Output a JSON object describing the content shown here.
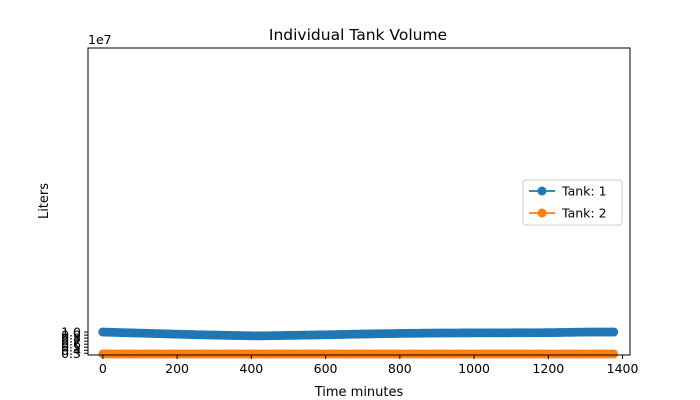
{
  "chart_data": {
    "type": "line",
    "title": "Individual Tank Volume",
    "xlabel": "Time minutes",
    "ylabel": "Liters",
    "y_offset_label": "1e7",
    "y_scale": 10000000,
    "xlim": [
      -40,
      1420
    ],
    "ylim": [
      0.2435,
      10.366
    ],
    "xticks": [
      0,
      200,
      400,
      600,
      800,
      1000,
      1200,
      1400
    ],
    "yticks": [
      0.3,
      0.4,
      0.5,
      0.6,
      0.7,
      0.8,
      0.9,
      1.0
    ],
    "grid": false,
    "legend_position": "center-right",
    "marker": "circle",
    "series": [
      {
        "name": "Tank: 1",
        "color": "#1f77b4",
        "points": [
          [
            0,
            1.0
          ],
          [
            100,
            0.965
          ],
          [
            200,
            0.93
          ],
          [
            300,
            0.9
          ],
          [
            420,
            0.873
          ],
          [
            500,
            0.89
          ],
          [
            600,
            0.91
          ],
          [
            700,
            0.935
          ],
          [
            800,
            0.955
          ],
          [
            900,
            0.968
          ],
          [
            1000,
            0.973
          ],
          [
            1100,
            0.975
          ],
          [
            1200,
            0.98
          ],
          [
            1300,
            1.0
          ],
          [
            1380,
            1.0
          ]
        ]
      },
      {
        "name": "Tank: 2",
        "color": "#ff7f0e",
        "points": [
          [
            0,
            0.278
          ],
          [
            1380,
            0.278
          ]
        ]
      }
    ]
  }
}
